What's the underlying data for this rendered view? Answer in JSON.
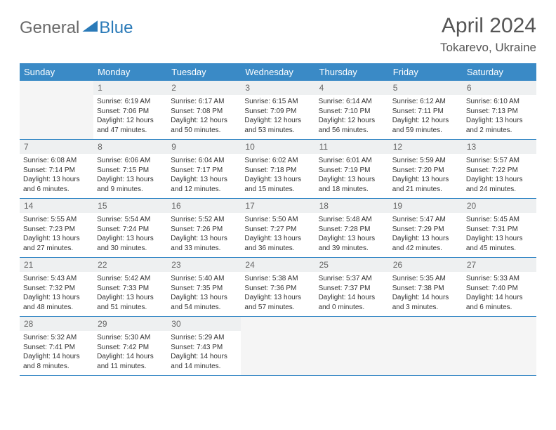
{
  "logo": {
    "general": "General",
    "blue": "Blue"
  },
  "title": {
    "month": "April 2024",
    "location": "Tokarevo, Ukraine"
  },
  "colors": {
    "accent": "#3a8ac6",
    "logoBlue": "#2a7ab8",
    "grayText": "#6a6a6a",
    "bgShade": "#eef0f1"
  },
  "dayNames": [
    "Sunday",
    "Monday",
    "Tuesday",
    "Wednesday",
    "Thursday",
    "Friday",
    "Saturday"
  ],
  "weeks": [
    [
      null,
      {
        "n": "1",
        "sr": "Sunrise: 6:19 AM",
        "ss": "Sunset: 7:06 PM",
        "d1": "Daylight: 12 hours",
        "d2": "and 47 minutes."
      },
      {
        "n": "2",
        "sr": "Sunrise: 6:17 AM",
        "ss": "Sunset: 7:08 PM",
        "d1": "Daylight: 12 hours",
        "d2": "and 50 minutes."
      },
      {
        "n": "3",
        "sr": "Sunrise: 6:15 AM",
        "ss": "Sunset: 7:09 PM",
        "d1": "Daylight: 12 hours",
        "d2": "and 53 minutes."
      },
      {
        "n": "4",
        "sr": "Sunrise: 6:14 AM",
        "ss": "Sunset: 7:10 PM",
        "d1": "Daylight: 12 hours",
        "d2": "and 56 minutes."
      },
      {
        "n": "5",
        "sr": "Sunrise: 6:12 AM",
        "ss": "Sunset: 7:11 PM",
        "d1": "Daylight: 12 hours",
        "d2": "and 59 minutes."
      },
      {
        "n": "6",
        "sr": "Sunrise: 6:10 AM",
        "ss": "Sunset: 7:13 PM",
        "d1": "Daylight: 13 hours",
        "d2": "and 2 minutes."
      }
    ],
    [
      {
        "n": "7",
        "sr": "Sunrise: 6:08 AM",
        "ss": "Sunset: 7:14 PM",
        "d1": "Daylight: 13 hours",
        "d2": "and 6 minutes."
      },
      {
        "n": "8",
        "sr": "Sunrise: 6:06 AM",
        "ss": "Sunset: 7:15 PM",
        "d1": "Daylight: 13 hours",
        "d2": "and 9 minutes."
      },
      {
        "n": "9",
        "sr": "Sunrise: 6:04 AM",
        "ss": "Sunset: 7:17 PM",
        "d1": "Daylight: 13 hours",
        "d2": "and 12 minutes."
      },
      {
        "n": "10",
        "sr": "Sunrise: 6:02 AM",
        "ss": "Sunset: 7:18 PM",
        "d1": "Daylight: 13 hours",
        "d2": "and 15 minutes."
      },
      {
        "n": "11",
        "sr": "Sunrise: 6:01 AM",
        "ss": "Sunset: 7:19 PM",
        "d1": "Daylight: 13 hours",
        "d2": "and 18 minutes."
      },
      {
        "n": "12",
        "sr": "Sunrise: 5:59 AM",
        "ss": "Sunset: 7:20 PM",
        "d1": "Daylight: 13 hours",
        "d2": "and 21 minutes."
      },
      {
        "n": "13",
        "sr": "Sunrise: 5:57 AM",
        "ss": "Sunset: 7:22 PM",
        "d1": "Daylight: 13 hours",
        "d2": "and 24 minutes."
      }
    ],
    [
      {
        "n": "14",
        "sr": "Sunrise: 5:55 AM",
        "ss": "Sunset: 7:23 PM",
        "d1": "Daylight: 13 hours",
        "d2": "and 27 minutes."
      },
      {
        "n": "15",
        "sr": "Sunrise: 5:54 AM",
        "ss": "Sunset: 7:24 PM",
        "d1": "Daylight: 13 hours",
        "d2": "and 30 minutes."
      },
      {
        "n": "16",
        "sr": "Sunrise: 5:52 AM",
        "ss": "Sunset: 7:26 PM",
        "d1": "Daylight: 13 hours",
        "d2": "and 33 minutes."
      },
      {
        "n": "17",
        "sr": "Sunrise: 5:50 AM",
        "ss": "Sunset: 7:27 PM",
        "d1": "Daylight: 13 hours",
        "d2": "and 36 minutes."
      },
      {
        "n": "18",
        "sr": "Sunrise: 5:48 AM",
        "ss": "Sunset: 7:28 PM",
        "d1": "Daylight: 13 hours",
        "d2": "and 39 minutes."
      },
      {
        "n": "19",
        "sr": "Sunrise: 5:47 AM",
        "ss": "Sunset: 7:29 PM",
        "d1": "Daylight: 13 hours",
        "d2": "and 42 minutes."
      },
      {
        "n": "20",
        "sr": "Sunrise: 5:45 AM",
        "ss": "Sunset: 7:31 PM",
        "d1": "Daylight: 13 hours",
        "d2": "and 45 minutes."
      }
    ],
    [
      {
        "n": "21",
        "sr": "Sunrise: 5:43 AM",
        "ss": "Sunset: 7:32 PM",
        "d1": "Daylight: 13 hours",
        "d2": "and 48 minutes."
      },
      {
        "n": "22",
        "sr": "Sunrise: 5:42 AM",
        "ss": "Sunset: 7:33 PM",
        "d1": "Daylight: 13 hours",
        "d2": "and 51 minutes."
      },
      {
        "n": "23",
        "sr": "Sunrise: 5:40 AM",
        "ss": "Sunset: 7:35 PM",
        "d1": "Daylight: 13 hours",
        "d2": "and 54 minutes."
      },
      {
        "n": "24",
        "sr": "Sunrise: 5:38 AM",
        "ss": "Sunset: 7:36 PM",
        "d1": "Daylight: 13 hours",
        "d2": "and 57 minutes."
      },
      {
        "n": "25",
        "sr": "Sunrise: 5:37 AM",
        "ss": "Sunset: 7:37 PM",
        "d1": "Daylight: 14 hours",
        "d2": "and 0 minutes."
      },
      {
        "n": "26",
        "sr": "Sunrise: 5:35 AM",
        "ss": "Sunset: 7:38 PM",
        "d1": "Daylight: 14 hours",
        "d2": "and 3 minutes."
      },
      {
        "n": "27",
        "sr": "Sunrise: 5:33 AM",
        "ss": "Sunset: 7:40 PM",
        "d1": "Daylight: 14 hours",
        "d2": "and 6 minutes."
      }
    ],
    [
      {
        "n": "28",
        "sr": "Sunrise: 5:32 AM",
        "ss": "Sunset: 7:41 PM",
        "d1": "Daylight: 14 hours",
        "d2": "and 8 minutes."
      },
      {
        "n": "29",
        "sr": "Sunrise: 5:30 AM",
        "ss": "Sunset: 7:42 PM",
        "d1": "Daylight: 14 hours",
        "d2": "and 11 minutes."
      },
      {
        "n": "30",
        "sr": "Sunrise: 5:29 AM",
        "ss": "Sunset: 7:43 PM",
        "d1": "Daylight: 14 hours",
        "d2": "and 14 minutes."
      },
      null,
      null,
      null,
      null
    ]
  ]
}
